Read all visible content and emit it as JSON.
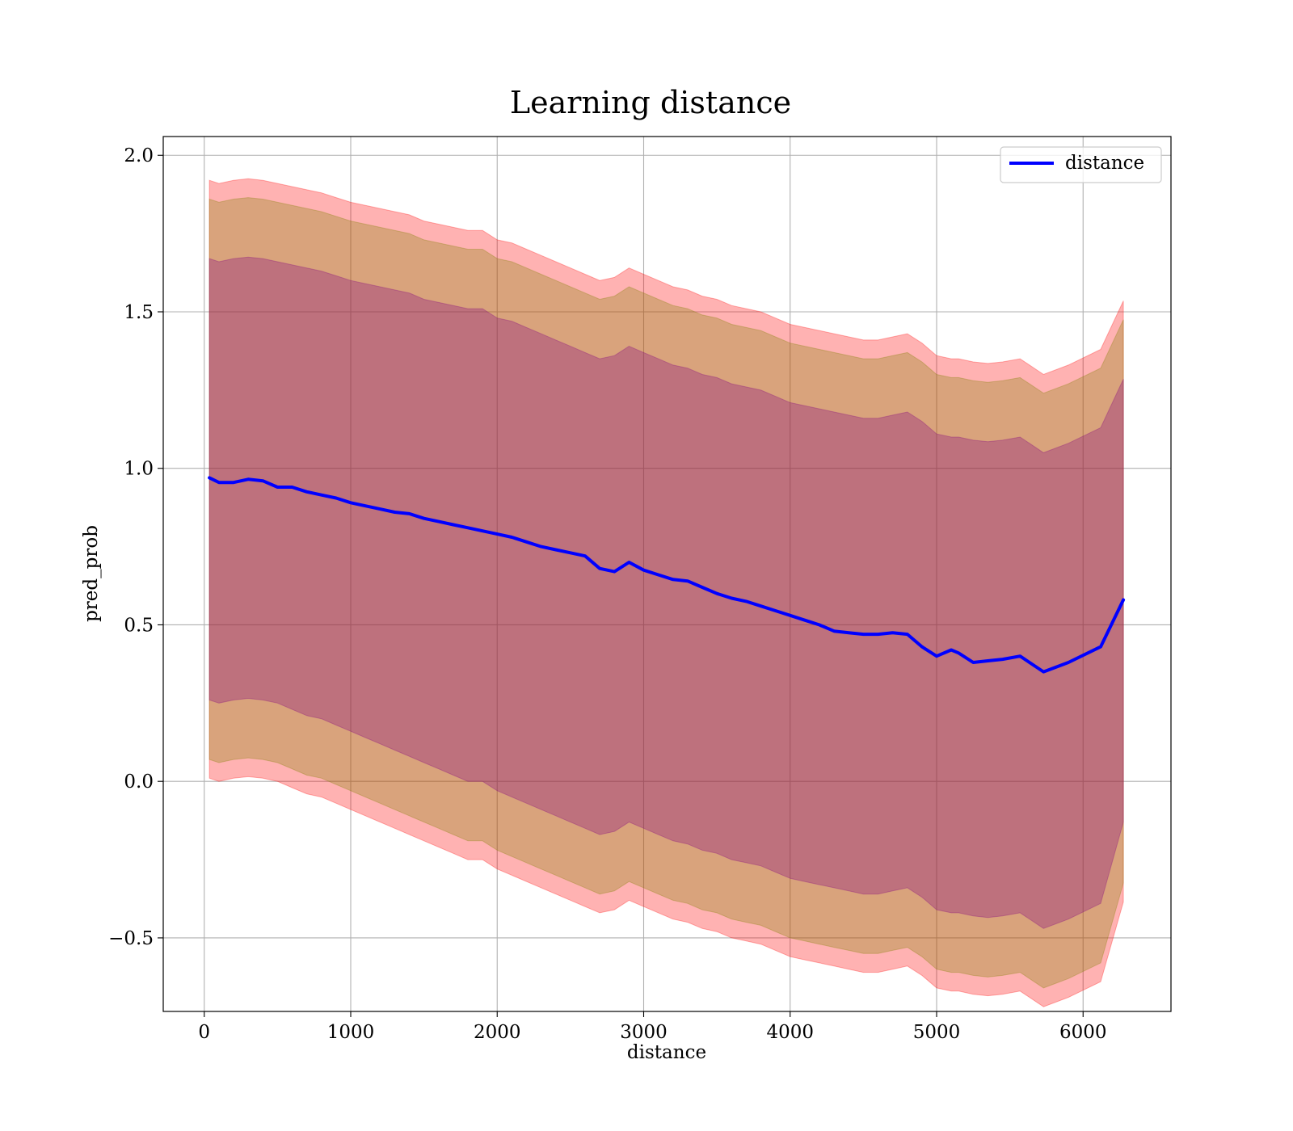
{
  "chart_data": {
    "type": "line",
    "title": "Learning distance",
    "xlabel": "distance",
    "ylabel": "pred_prob",
    "xlim": [
      -280,
      6600
    ],
    "ylim": [
      -0.735,
      2.06
    ],
    "xticks": [
      0,
      1000,
      2000,
      3000,
      4000,
      5000,
      6000
    ],
    "xtick_labels": [
      "0",
      "1000",
      "2000",
      "3000",
      "4000",
      "5000",
      "6000"
    ],
    "yticks": [
      -0.5,
      0.0,
      0.5,
      1.0,
      1.5,
      2.0
    ],
    "ytick_labels": [
      "−0.5",
      "0.0",
      "0.5",
      "1.0",
      "1.5",
      "2.0"
    ],
    "grid": true,
    "legend": {
      "placement": "upper right",
      "entries": [
        "distance"
      ]
    },
    "colors": {
      "line": "#0000ff",
      "band_outer": "#ff0000",
      "band_middle": "#808000",
      "band_inner": "#800080"
    },
    "series": [
      {
        "name": "distance",
        "x": [
          35,
          100,
          200,
          300,
          400,
          500,
          600,
          700,
          800,
          900,
          1000,
          1100,
          1200,
          1300,
          1400,
          1500,
          1600,
          1700,
          1800,
          1900,
          2000,
          2100,
          2200,
          2300,
          2400,
          2500,
          2600,
          2700,
          2800,
          2900,
          3000,
          3100,
          3200,
          3300,
          3400,
          3500,
          3600,
          3700,
          3800,
          3900,
          4000,
          4100,
          4200,
          4300,
          4400,
          4500,
          4600,
          4700,
          4800,
          4900,
          5000,
          5100,
          5150,
          5250,
          5350,
          5450,
          5570,
          5730,
          5900,
          6120,
          6275
        ],
        "y": [
          0.97,
          0.955,
          0.955,
          0.965,
          0.96,
          0.94,
          0.94,
          0.925,
          0.915,
          0.905,
          0.89,
          0.88,
          0.87,
          0.86,
          0.855,
          0.84,
          0.83,
          0.82,
          0.81,
          0.8,
          0.79,
          0.78,
          0.765,
          0.75,
          0.74,
          0.73,
          0.72,
          0.68,
          0.67,
          0.7,
          0.675,
          0.66,
          0.645,
          0.64,
          0.62,
          0.6,
          0.585,
          0.575,
          0.56,
          0.545,
          0.53,
          0.515,
          0.5,
          0.48,
          0.475,
          0.47,
          0.47,
          0.475,
          0.47,
          0.43,
          0.4,
          0.42,
          0.41,
          0.38,
          0.385,
          0.39,
          0.4,
          0.35,
          0.38,
          0.43,
          0.58
        ],
        "band_outer_upper": [
          1.92,
          1.91,
          1.92,
          1.925,
          1.92,
          1.91,
          1.9,
          1.89,
          1.88,
          1.865,
          1.85,
          1.84,
          1.83,
          1.82,
          1.81,
          1.79,
          1.78,
          1.77,
          1.76,
          1.76,
          1.73,
          1.72,
          1.7,
          1.68,
          1.66,
          1.64,
          1.62,
          1.6,
          1.61,
          1.64,
          1.62,
          1.6,
          1.58,
          1.57,
          1.55,
          1.54,
          1.52,
          1.51,
          1.5,
          1.48,
          1.46,
          1.45,
          1.44,
          1.43,
          1.42,
          1.41,
          1.41,
          1.42,
          1.43,
          1.4,
          1.36,
          1.35,
          1.35,
          1.34,
          1.335,
          1.34,
          1.35,
          1.3,
          1.33,
          1.38,
          1.535
        ],
        "band_middle_upper": [
          1.86,
          1.85,
          1.86,
          1.865,
          1.86,
          1.85,
          1.84,
          1.83,
          1.82,
          1.805,
          1.79,
          1.78,
          1.77,
          1.76,
          1.75,
          1.73,
          1.72,
          1.71,
          1.7,
          1.7,
          1.67,
          1.66,
          1.64,
          1.62,
          1.6,
          1.58,
          1.56,
          1.54,
          1.55,
          1.58,
          1.56,
          1.54,
          1.52,
          1.51,
          1.49,
          1.48,
          1.46,
          1.45,
          1.44,
          1.42,
          1.4,
          1.39,
          1.38,
          1.37,
          1.36,
          1.35,
          1.35,
          1.36,
          1.37,
          1.34,
          1.3,
          1.29,
          1.29,
          1.28,
          1.275,
          1.28,
          1.29,
          1.24,
          1.27,
          1.32,
          1.475
        ],
        "band_inner_upper": [
          1.67,
          1.66,
          1.67,
          1.675,
          1.67,
          1.66,
          1.65,
          1.64,
          1.63,
          1.615,
          1.6,
          1.59,
          1.58,
          1.57,
          1.56,
          1.54,
          1.53,
          1.52,
          1.51,
          1.51,
          1.48,
          1.47,
          1.45,
          1.43,
          1.41,
          1.39,
          1.37,
          1.35,
          1.36,
          1.39,
          1.37,
          1.35,
          1.33,
          1.32,
          1.3,
          1.29,
          1.27,
          1.26,
          1.25,
          1.23,
          1.21,
          1.2,
          1.19,
          1.18,
          1.17,
          1.16,
          1.16,
          1.17,
          1.18,
          1.15,
          1.11,
          1.1,
          1.1,
          1.09,
          1.085,
          1.09,
          1.1,
          1.05,
          1.08,
          1.13,
          1.285
        ],
        "band_inner_lower": [
          0.26,
          0.25,
          0.26,
          0.265,
          0.26,
          0.25,
          0.23,
          0.21,
          0.2,
          0.18,
          0.16,
          0.14,
          0.12,
          0.1,
          0.08,
          0.06,
          0.04,
          0.02,
          0.0,
          0.0,
          -0.03,
          -0.05,
          -0.07,
          -0.09,
          -0.11,
          -0.13,
          -0.15,
          -0.17,
          -0.16,
          -0.13,
          -0.15,
          -0.17,
          -0.19,
          -0.2,
          -0.22,
          -0.23,
          -0.25,
          -0.26,
          -0.27,
          -0.29,
          -0.31,
          -0.32,
          -0.33,
          -0.34,
          -0.35,
          -0.36,
          -0.36,
          -0.35,
          -0.34,
          -0.37,
          -0.41,
          -0.42,
          -0.42,
          -0.43,
          -0.435,
          -0.43,
          -0.42,
          -0.47,
          -0.44,
          -0.39,
          -0.13
        ],
        "band_middle_lower": [
          0.07,
          0.06,
          0.07,
          0.075,
          0.07,
          0.06,
          0.04,
          0.02,
          0.01,
          -0.01,
          -0.03,
          -0.05,
          -0.07,
          -0.09,
          -0.11,
          -0.13,
          -0.15,
          -0.17,
          -0.19,
          -0.19,
          -0.22,
          -0.24,
          -0.26,
          -0.28,
          -0.3,
          -0.32,
          -0.34,
          -0.36,
          -0.35,
          -0.32,
          -0.34,
          -0.36,
          -0.38,
          -0.39,
          -0.41,
          -0.42,
          -0.44,
          -0.45,
          -0.46,
          -0.48,
          -0.5,
          -0.51,
          -0.52,
          -0.53,
          -0.54,
          -0.55,
          -0.55,
          -0.54,
          -0.53,
          -0.56,
          -0.6,
          -0.61,
          -0.61,
          -0.62,
          -0.625,
          -0.62,
          -0.61,
          -0.66,
          -0.63,
          -0.58,
          -0.325
        ],
        "band_outer_lower": [
          0.01,
          0.0,
          0.01,
          0.015,
          0.01,
          0.0,
          -0.02,
          -0.04,
          -0.05,
          -0.07,
          -0.09,
          -0.11,
          -0.13,
          -0.15,
          -0.17,
          -0.19,
          -0.21,
          -0.23,
          -0.25,
          -0.25,
          -0.28,
          -0.3,
          -0.32,
          -0.34,
          -0.36,
          -0.38,
          -0.4,
          -0.42,
          -0.41,
          -0.38,
          -0.4,
          -0.42,
          -0.44,
          -0.45,
          -0.47,
          -0.48,
          -0.5,
          -0.51,
          -0.52,
          -0.54,
          -0.56,
          -0.57,
          -0.58,
          -0.59,
          -0.6,
          -0.61,
          -0.61,
          -0.6,
          -0.59,
          -0.62,
          -0.66,
          -0.67,
          -0.67,
          -0.68,
          -0.685,
          -0.68,
          -0.67,
          -0.72,
          -0.69,
          -0.64,
          -0.385
        ]
      }
    ]
  }
}
